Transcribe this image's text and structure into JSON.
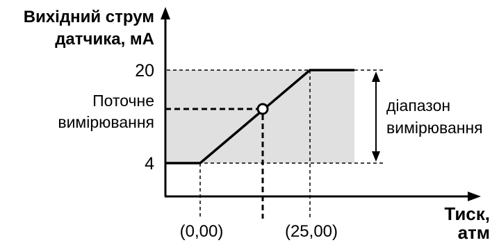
{
  "y_axis_label": [
    "Вихідний струм",
    "датчика, мА"
  ],
  "x_axis_label": [
    "Тиск,",
    "атм"
  ],
  "y_ticks": {
    "high": "20",
    "low": "4"
  },
  "x_ticks": {
    "low": "(0,00)",
    "high": "(25,00)"
  },
  "current_measurement_label": [
    "Поточне",
    "вимірювання"
  ],
  "range_label": [
    "діапазон",
    "вимірювання"
  ],
  "colors": {
    "range_fill": "#e0e0e0",
    "line": "#000000"
  }
}
